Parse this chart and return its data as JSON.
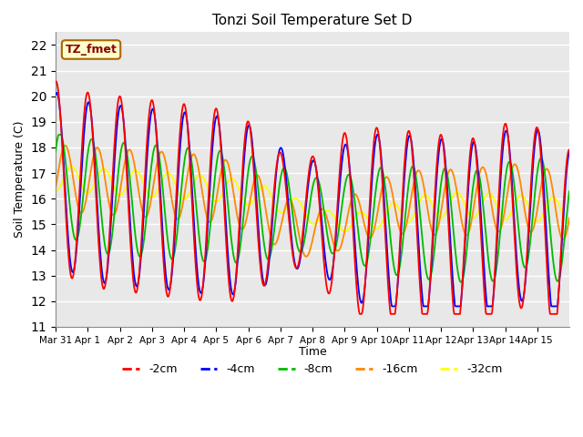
{
  "title": "Tonzi Soil Temperature Set D",
  "ylabel": "Soil Temperature (C)",
  "xlabel": "Time",
  "annotation": "TZ_fmet",
  "ylim": [
    11.0,
    22.5
  ],
  "yticks": [
    11.0,
    12.0,
    13.0,
    14.0,
    15.0,
    16.0,
    17.0,
    18.0,
    19.0,
    20.0,
    21.0,
    22.0
  ],
  "colors": {
    "-2cm": "#ff0000",
    "-4cm": "#0000ff",
    "-8cm": "#00bb00",
    "-16cm": "#ff8800",
    "-32cm": "#ffff00"
  },
  "bg_color": "#e8e8e8",
  "xtick_labels": [
    "Mar 31",
    "Apr 1",
    "Apr 2",
    "Apr 3",
    "Apr 4",
    "Apr 5",
    "Apr 6",
    "Apr 7",
    "Apr 8",
    "Apr 9",
    "Apr 10",
    "Apr 11",
    "Apr 12",
    "Apr 13",
    "Apr 14",
    "Apr 15"
  ]
}
